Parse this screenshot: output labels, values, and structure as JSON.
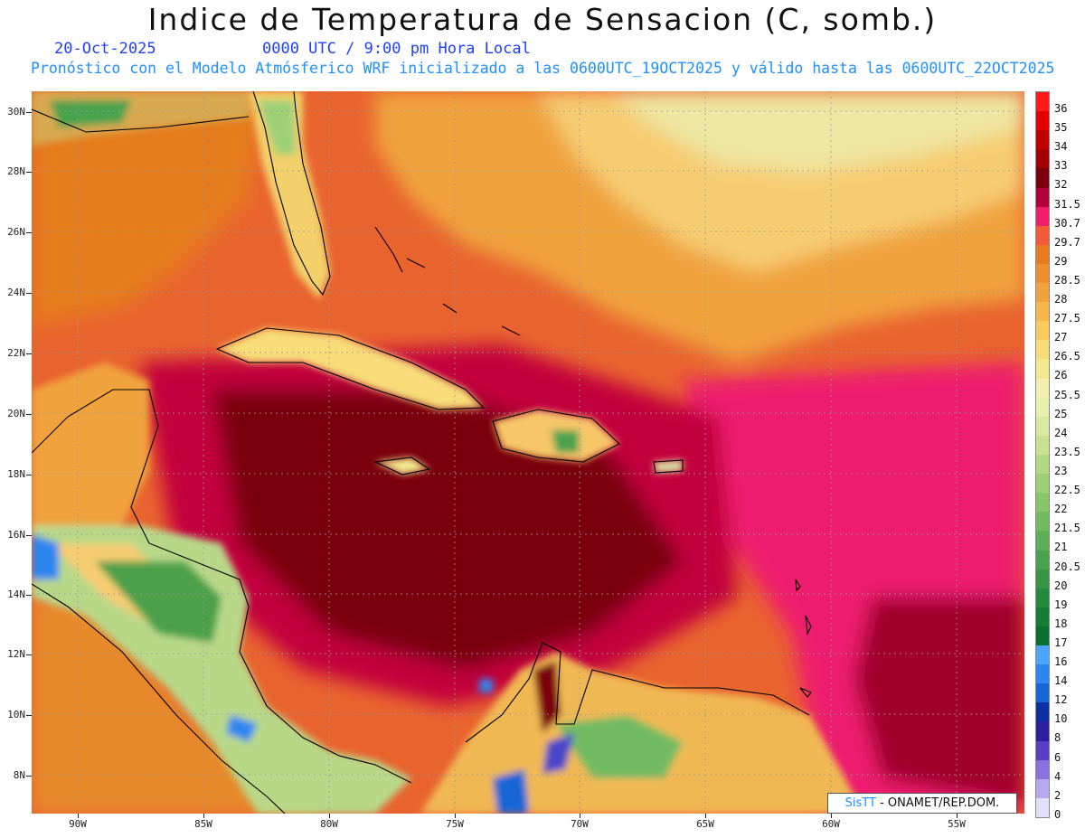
{
  "header": {
    "title": "Indice de Temperatura de Sensacion (C, somb.)",
    "date": "20-Oct-2025",
    "time": "0000 UTC / 9:00 pm Hora Local",
    "model_line": "Pronóstico con el Modelo Atmósferico WRF inicializado a las 0600UTC_19OCT2025 y válido hasta las  0600UTC_22OCT2025"
  },
  "axes": {
    "lat_labels": [
      "30N",
      "28N",
      "26N",
      "24N",
      "22N",
      "20N",
      "18N",
      "16N",
      "14N",
      "12N",
      "10N",
      "8N"
    ],
    "lon_labels": [
      "90W",
      "85W",
      "80W",
      "75W",
      "70W",
      "65W",
      "60W",
      "55W"
    ]
  },
  "colorbar": {
    "labels": [
      "36",
      "35",
      "34",
      "33",
      "32",
      "31.5",
      "30.7",
      "29.7",
      "29",
      "28.5",
      "28",
      "27.5",
      "27",
      "26.5",
      "26",
      "25.5",
      "25",
      "24",
      "23.5",
      "23",
      "22.5",
      "22",
      "21.5",
      "21",
      "20.5",
      "20",
      "19",
      "18",
      "17",
      "16",
      "14",
      "12",
      "10",
      "8",
      "6",
      "4",
      "2",
      "0"
    ],
    "colors": [
      "#ff1a1a",
      "#e00000",
      "#c00000",
      "#a00000",
      "#7a0010",
      "#b0003a",
      "#ee1e6e",
      "#f25a3c",
      "#e57c1e",
      "#ec8f2c",
      "#f0a23e",
      "#f6b84a",
      "#f8cc5e",
      "#f7dc78",
      "#f4e98e",
      "#f2f0b0",
      "#e9efb0",
      "#d8e9a0",
      "#c6e292",
      "#b2da84",
      "#9ed078",
      "#88c66c",
      "#72bb62",
      "#5cae58",
      "#48a24e",
      "#389646",
      "#248a3e",
      "#157e36",
      "#0a7030",
      "#4aa6ff",
      "#2e86f0",
      "#1766d6",
      "#0c30a0",
      "#2a20a0",
      "#5a3ec8",
      "#8a70e0",
      "#b8a8f0",
      "#e0e0f8"
    ]
  },
  "credit": {
    "logo": "SisTT",
    "text": " - ONAMET/REP.DOM."
  }
}
